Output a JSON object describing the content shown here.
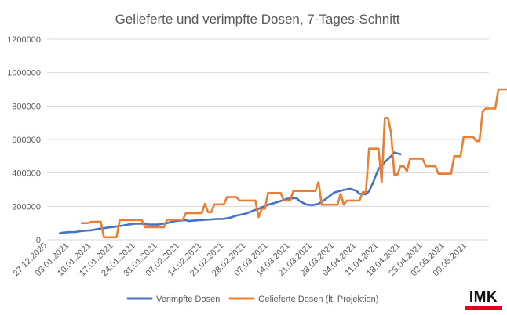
{
  "colors": {
    "administered": "#4472C4",
    "delivered": "#ED7D31",
    "grid": "#d9d9d9",
    "text": "#595959",
    "brand": "#e2001a"
  },
  "logo": {
    "text": "IMK"
  },
  "chart_data": {
    "type": "line",
    "title": "Gelieferte und verimpfte Dosen, 7-Tages-Schnitt",
    "xlabel": "",
    "ylabel": "",
    "ylim": [
      0,
      1200000
    ],
    "yticks": [
      0,
      200000,
      400000,
      600000,
      800000,
      1000000,
      1200000
    ],
    "ytick_labels": [
      "0",
      "200000",
      "400000",
      "600000",
      "800000",
      "1000000",
      "1200000"
    ],
    "x_range": [
      "2020-12-27",
      "2021-05-16"
    ],
    "xtick_labels": [
      "27.12.2020",
      "03.01.2021",
      "10.01.2021",
      "17.01.2021",
      "24.01.2021",
      "31.01.2021",
      "07.02.2021",
      "14.02.2021",
      "21.02.2021",
      "28.02.2021",
      "07.03.2021",
      "14.03.2021",
      "21.03.2021",
      "28.03.2021",
      "04.04.2021",
      "11.04.2021",
      "18.04.2021",
      "25.04.2021",
      "02.05.2021",
      "09.05.2021"
    ],
    "grid": true,
    "legend": "bottom",
    "series": [
      {
        "name": "Verimpfte Dosen",
        "color": "#4472C4",
        "points": [
          [
            "2020-12-31",
            38000
          ],
          [
            "2021-01-01",
            43000
          ],
          [
            "2021-01-03",
            46000
          ],
          [
            "2021-01-05",
            47000
          ],
          [
            "2021-01-07",
            53000
          ],
          [
            "2021-01-10",
            57000
          ],
          [
            "2021-01-12",
            64000
          ],
          [
            "2021-01-14",
            70000
          ],
          [
            "2021-01-17",
            77000
          ],
          [
            "2021-01-20",
            85000
          ],
          [
            "2021-01-22",
            92000
          ],
          [
            "2021-01-24",
            97000
          ],
          [
            "2021-01-26",
            96000
          ],
          [
            "2021-01-28",
            92000
          ],
          [
            "2021-01-31",
            91000
          ],
          [
            "2021-02-03",
            100000
          ],
          [
            "2021-02-05",
            110000
          ],
          [
            "2021-02-07",
            115000
          ],
          [
            "2021-02-09",
            117000
          ],
          [
            "2021-02-10",
            112000
          ],
          [
            "2021-02-12",
            116000
          ],
          [
            "2021-02-14",
            118000
          ],
          [
            "2021-02-17",
            122000
          ],
          [
            "2021-02-19",
            124000
          ],
          [
            "2021-02-21",
            125000
          ],
          [
            "2021-02-23",
            132000
          ],
          [
            "2021-02-25",
            145000
          ],
          [
            "2021-02-28",
            157000
          ],
          [
            "2021-03-02",
            172000
          ],
          [
            "2021-03-04",
            185000
          ],
          [
            "2021-03-07",
            210000
          ],
          [
            "2021-03-09",
            220000
          ],
          [
            "2021-03-11",
            232000
          ],
          [
            "2021-03-13",
            245000
          ],
          [
            "2021-03-16",
            250000
          ],
          [
            "2021-03-17",
            232000
          ],
          [
            "2021-03-19",
            212000
          ],
          [
            "2021-03-21",
            207000
          ],
          [
            "2021-03-23",
            215000
          ],
          [
            "2021-03-25",
            240000
          ],
          [
            "2021-03-28",
            283000
          ],
          [
            "2021-03-31",
            298000
          ],
          [
            "2021-04-02",
            305000
          ],
          [
            "2021-04-04",
            293000
          ],
          [
            "2021-04-05",
            275000
          ],
          [
            "2021-04-07",
            272000
          ],
          [
            "2021-04-08",
            290000
          ],
          [
            "2021-04-09",
            330000
          ],
          [
            "2021-04-11",
            425000
          ],
          [
            "2021-04-13",
            465000
          ],
          [
            "2021-04-15",
            500000
          ],
          [
            "2021-04-16",
            522000
          ],
          [
            "2021-04-18",
            512000
          ]
        ]
      },
      {
        "name": "Gelieferte Dosen (lt. Projektion)",
        "color": "#ED7D31",
        "points": [
          [
            "2021-01-07",
            100000
          ],
          [
            "2021-01-09",
            100000
          ],
          [
            "2021-01-10",
            108000
          ],
          [
            "2021-01-13",
            108000
          ],
          [
            "2021-01-14",
            15000
          ],
          [
            "2021-01-18",
            15000
          ],
          [
            "2021-01-19",
            118000
          ],
          [
            "2021-01-26",
            118000
          ],
          [
            "2021-01-27",
            75000
          ],
          [
            "2021-02-02",
            75000
          ],
          [
            "2021-02-03",
            120000
          ],
          [
            "2021-02-08",
            120000
          ],
          [
            "2021-02-09",
            160000
          ],
          [
            "2021-02-14",
            160000
          ],
          [
            "2021-02-15",
            215000
          ],
          [
            "2021-02-16",
            165000
          ],
          [
            "2021-02-17",
            165000
          ],
          [
            "2021-02-18",
            212000
          ],
          [
            "2021-02-21",
            212000
          ],
          [
            "2021-02-22",
            255000
          ],
          [
            "2021-02-25",
            255000
          ],
          [
            "2021-02-26",
            235000
          ],
          [
            "2021-03-03",
            235000
          ],
          [
            "2021-03-04",
            135000
          ],
          [
            "2021-03-05",
            185000
          ],
          [
            "2021-03-06",
            185000
          ],
          [
            "2021-03-07",
            280000
          ],
          [
            "2021-03-11",
            280000
          ],
          [
            "2021-03-12",
            235000
          ],
          [
            "2021-03-14",
            235000
          ],
          [
            "2021-03-15",
            292000
          ],
          [
            "2021-03-22",
            292000
          ],
          [
            "2021-03-23",
            345000
          ],
          [
            "2021-03-24",
            210000
          ],
          [
            "2021-03-29",
            210000
          ],
          [
            "2021-03-30",
            275000
          ],
          [
            "2021-03-31",
            210000
          ],
          [
            "2021-04-01",
            235000
          ],
          [
            "2021-04-05",
            235000
          ],
          [
            "2021-04-06",
            285000
          ],
          [
            "2021-04-07",
            285000
          ],
          [
            "2021-04-08",
            545000
          ],
          [
            "2021-04-11",
            545000
          ],
          [
            "2021-04-12",
            345000
          ],
          [
            "2021-04-13",
            730000
          ],
          [
            "2021-04-14",
            730000
          ],
          [
            "2021-04-15",
            640000
          ],
          [
            "2021-04-16",
            390000
          ],
          [
            "2021-04-17",
            390000
          ],
          [
            "2021-04-18",
            440000
          ],
          [
            "2021-04-19",
            440000
          ],
          [
            "2021-04-20",
            410000
          ],
          [
            "2021-04-21",
            485000
          ],
          [
            "2021-04-25",
            485000
          ],
          [
            "2021-04-26",
            440000
          ],
          [
            "2021-04-29",
            440000
          ],
          [
            "2021-04-30",
            395000
          ],
          [
            "2021-05-04",
            395000
          ],
          [
            "2021-05-05",
            500000
          ],
          [
            "2021-05-07",
            500000
          ],
          [
            "2021-05-08",
            615000
          ],
          [
            "2021-05-11",
            615000
          ],
          [
            "2021-05-12",
            590000
          ],
          [
            "2021-05-13",
            590000
          ],
          [
            "2021-05-14",
            765000
          ],
          [
            "2021-05-15",
            785000
          ],
          [
            "2021-05-18",
            785000
          ],
          [
            "2021-05-19",
            900000
          ],
          [
            "2021-05-23",
            900000
          ]
        ]
      }
    ]
  }
}
